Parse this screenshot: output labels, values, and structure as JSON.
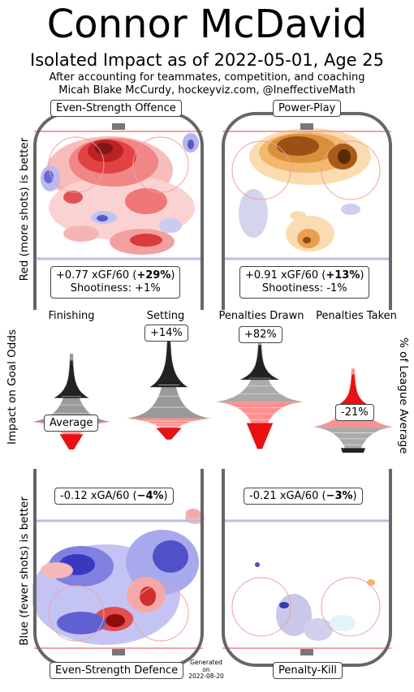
{
  "title": "Connor McDavid",
  "subtitle": "Isolated Impact as of 2022-05-01, Age 25",
  "note_line1": "After accounting for teammates, competition, and coaching",
  "note_line2": "Micah Blake McCurdy, hockeyviz.com, @IneffectiveMath",
  "left_axis_top": "Red (more shots) is better",
  "left_axis_mid": "Impact on Goal Odds",
  "left_axis_bottom": "Blue (fewer shots) is better",
  "right_axis_mid": "% of League Average",
  "generated": {
    "line1": "Generated",
    "line2": "on",
    "line3": "2022-08-20"
  },
  "panels": {
    "es_offence": {
      "label": "Even-Strength Offence",
      "stat_pre": "+0.77 xGF/60 (",
      "stat_bold": "+29%",
      "stat_post": ")",
      "shootiness": "Shootiness: +1%"
    },
    "powerplay": {
      "label": "Power-Play",
      "stat_pre": "+0.91 xGF/60 (",
      "stat_bold": "+13%",
      "stat_post": ")",
      "shootiness": "Shootiness: -1%"
    },
    "es_defence": {
      "label": "Even-Strength Defence",
      "stat_pre": "-0.12 xGA/60 (",
      "stat_bold": "−4%",
      "stat_post": ")"
    },
    "penalty_kill": {
      "label": "Penalty-Kill",
      "stat_pre": "-0.21 xGA/60 (",
      "stat_bold": "−3%",
      "stat_post": ")"
    }
  },
  "chart_data": {
    "type": "violin",
    "title": "Connor McDavid",
    "ylabel_left": "Impact on Goal Odds",
    "ylabel_right": "% of League Average",
    "series": [
      {
        "name": "Finishing",
        "estimate_label": "Average",
        "estimate_pct": 0
      },
      {
        "name": "Setting",
        "estimate_label": "+14%",
        "estimate_pct": 14
      },
      {
        "name": "Penalties Drawn",
        "estimate_label": "+82%",
        "estimate_pct": 82
      },
      {
        "name": "Penalties Taken",
        "estimate_label": "-21%",
        "estimate_pct": -21
      }
    ]
  },
  "colors": {
    "offence_red": "#e8262a",
    "defence_blue": "#2a2ad8",
    "pp_orange": "#b05a10",
    "pk_purple": "#8a8ac8",
    "board": "#666666"
  }
}
